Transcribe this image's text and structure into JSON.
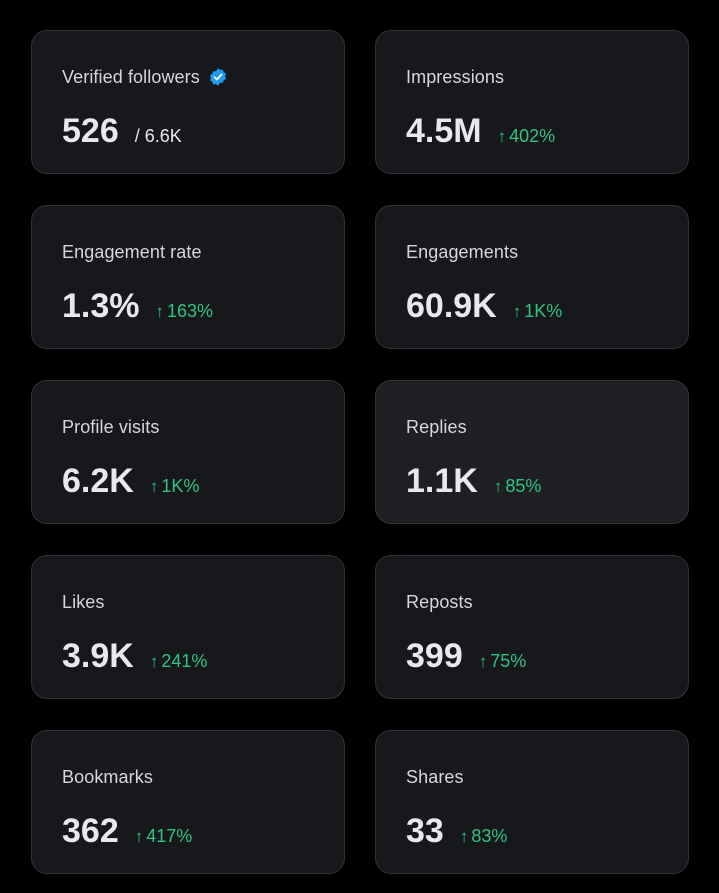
{
  "metrics": [
    {
      "label": "Verified followers",
      "value": "526",
      "total": "/ 6.6K",
      "verified_icon": "verified-badge-icon",
      "accent": "#1d9bf0"
    },
    {
      "label": "Impressions",
      "value": "4.5M",
      "change": "402%"
    },
    {
      "label": "Engagement rate",
      "value": "1.3%",
      "change": "163%"
    },
    {
      "label": "Engagements",
      "value": "60.9K",
      "change": "1K%"
    },
    {
      "label": "Profile visits",
      "value": "6.2K",
      "change": "1K%"
    },
    {
      "label": "Replies",
      "value": "1.1K",
      "change": "85%"
    },
    {
      "label": "Likes",
      "value": "3.9K",
      "change": "241%"
    },
    {
      "label": "Reposts",
      "value": "399",
      "change": "75%"
    },
    {
      "label": "Bookmarks",
      "value": "362",
      "change": "417%"
    },
    {
      "label": "Shares",
      "value": "33",
      "change": "83%"
    }
  ],
  "arrow_glyph": "↑",
  "colors": {
    "background": "#000000",
    "card": "#16181c",
    "card_hover": "#1d1f23",
    "border": "#2f3336",
    "text_primary": "#e7e9ea",
    "text_label": "#d5d7d9",
    "change_positive": "#30c47f",
    "verified_blue": "#1d9bf0"
  }
}
